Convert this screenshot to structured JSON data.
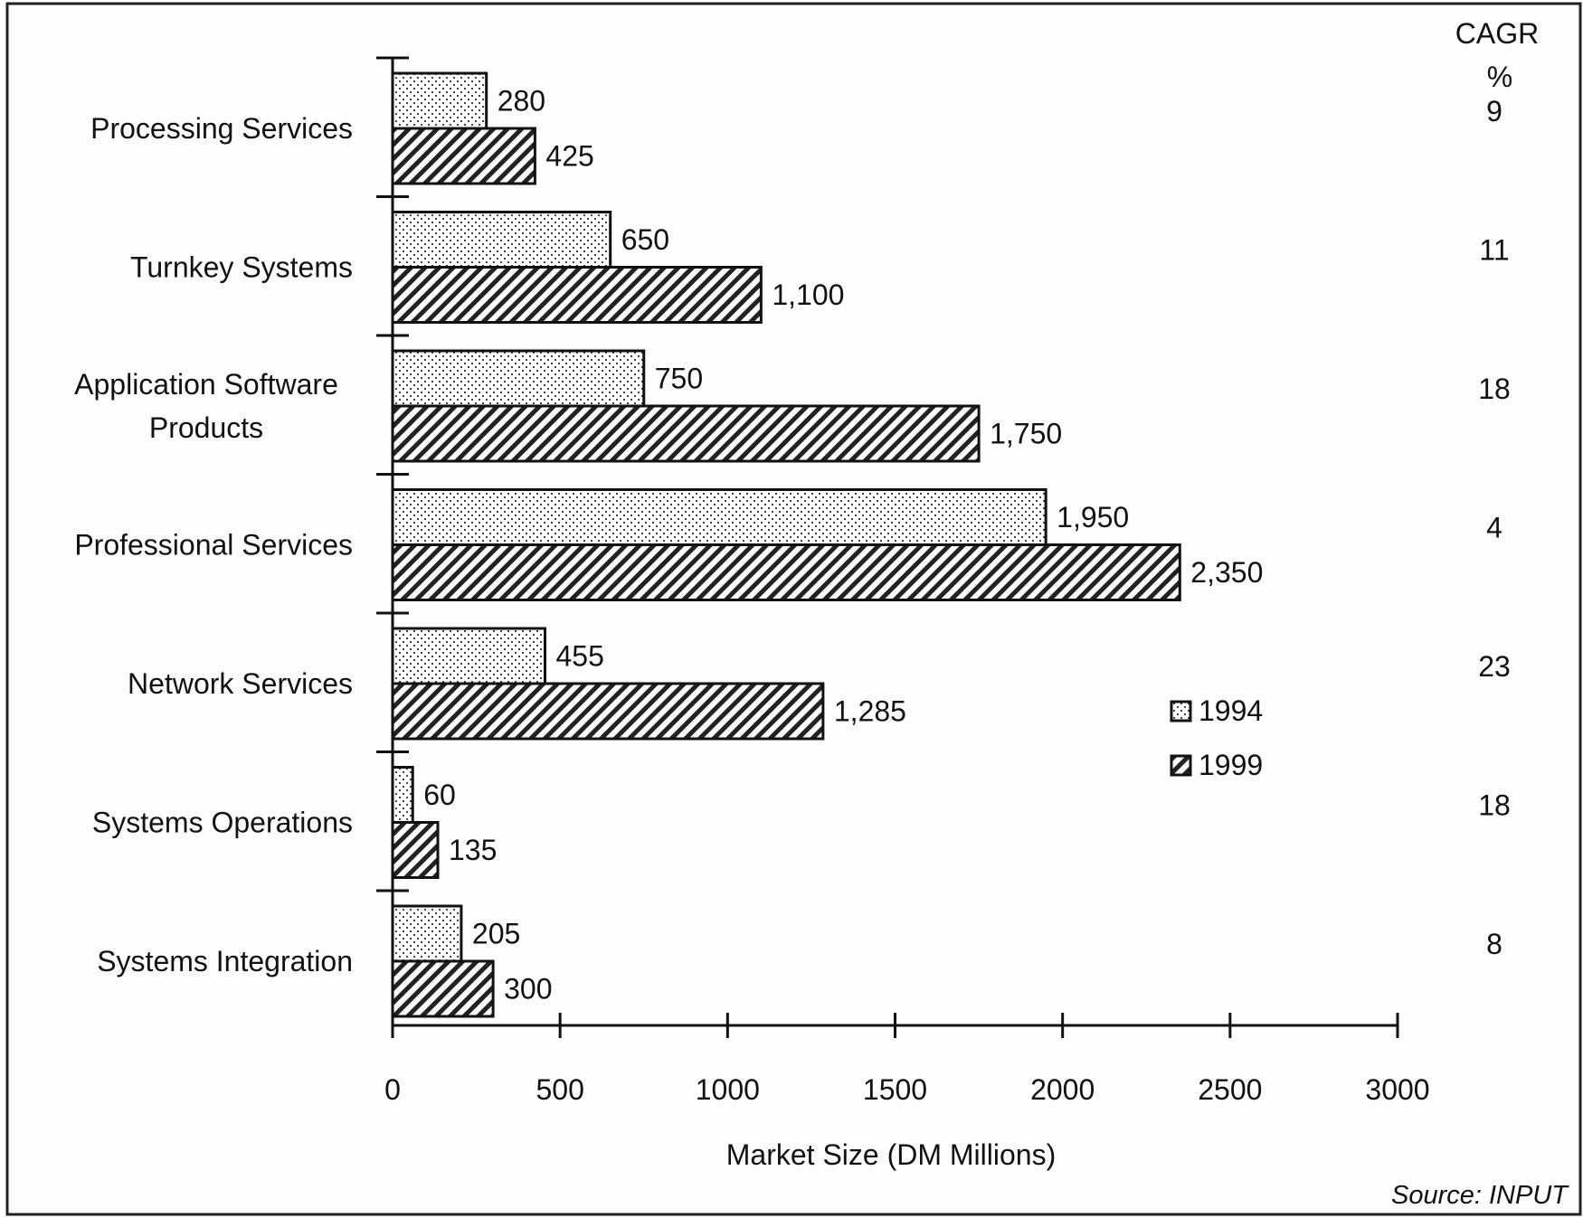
{
  "chart_data": {
    "type": "bar",
    "orientation": "horizontal",
    "categories": [
      "Processing Services",
      "Turnkey Systems",
      "Application Software Products",
      "Professional Services",
      "Network Services",
      "Systems Operations",
      "Systems Integration"
    ],
    "category_lines": [
      [
        "Processing Services"
      ],
      [
        "Turnkey Systems"
      ],
      [
        "Application Software",
        "Products"
      ],
      [
        "Professional Services"
      ],
      [
        "Network Services"
      ],
      [
        "Systems Operations"
      ],
      [
        "Systems Integration"
      ]
    ],
    "series": [
      {
        "name": "1994",
        "pattern": "dots",
        "values": [
          280,
          650,
          750,
          1950,
          455,
          60,
          205
        ],
        "labels": [
          "280",
          "650",
          "750",
          "1,950",
          "455",
          "60",
          "205"
        ]
      },
      {
        "name": "1999",
        "pattern": "diagonal-hatch",
        "values": [
          425,
          1100,
          1750,
          2350,
          1285,
          135,
          300
        ],
        "labels": [
          "425",
          "1,100",
          "1,750",
          "2,350",
          "1,285",
          "135",
          "300"
        ]
      }
    ],
    "xlabel": "Market Size (DM Millions)",
    "xlim": [
      0,
      3000
    ],
    "xticks": [
      0,
      500,
      1000,
      1500,
      2000,
      2500,
      3000
    ],
    "xtick_labels": [
      "0",
      "500",
      "1000",
      "1500",
      "2000",
      "2500",
      "3000"
    ],
    "cagr_header": [
      "CAGR",
      "%"
    ],
    "cagr_values": [
      "9",
      "11",
      "18",
      "4",
      "23",
      "18",
      "8"
    ],
    "legend_position": "right-center",
    "source": "Source: INPUT",
    "grid": false
  }
}
